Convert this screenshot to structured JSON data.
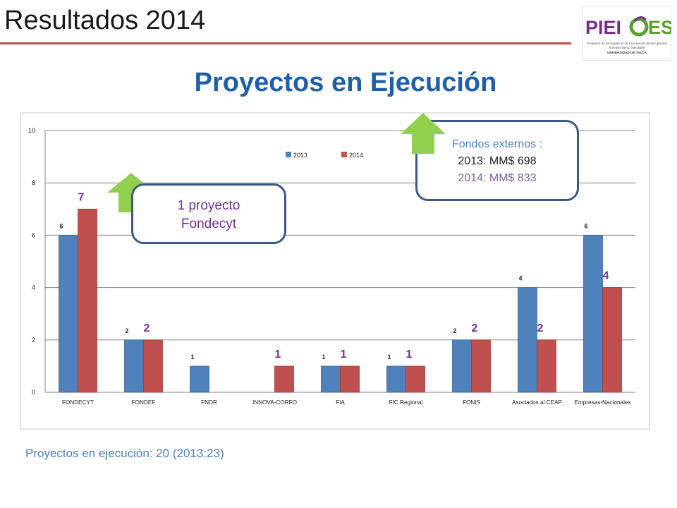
{
  "slide": {
    "title": "Resultados 2014",
    "heading": "Proyectos en Ejecución",
    "footer": "Proyectos en ejecución: 20  (2013:23)"
  },
  "logo": {
    "brand": "PIEI ES",
    "line1": "Programa de Investigación de Excelencia Interdisciplinaria",
    "line2": "Envejecimiento Saludable",
    "line3": "UNIVERSIDAD DE TALCA",
    "colors": {
      "purple": "#7b2c8f",
      "green": "#5aa02c"
    }
  },
  "callouts": {
    "fondecyt": {
      "line1": "1 proyecto",
      "line2": "Fondecyt"
    },
    "fondos": {
      "line1": "Fondos externos :",
      "line2": "2013: MM$ 698",
      "line3": "2014: MM$ 833"
    }
  },
  "colors": {
    "series2013": "#4f81bd",
    "series2014": "#c0504d",
    "label2014": "#7030a0",
    "arrow": "#92d050",
    "titleRule": "#c0504d"
  },
  "chart_data": {
    "type": "bar",
    "categories": [
      "FONDECYT",
      "FONDEF",
      "FNDR",
      "INNOVA-CORFO",
      "FIA",
      "FIC Regional",
      "FONIS",
      "Asociados al CEAP",
      "Empresas-Nacionales"
    ],
    "series": [
      {
        "name": "2013",
        "values": [
          6,
          2,
          1,
          0,
          1,
          1,
          2,
          4,
          6
        ],
        "labels": [
          "6",
          "2",
          "1",
          "",
          "1",
          "1",
          "2",
          "4",
          "6"
        ]
      },
      {
        "name": "2014",
        "values": [
          7,
          2,
          0,
          1,
          1,
          1,
          2,
          2,
          4
        ],
        "labels": [
          "7",
          "2",
          "",
          "1",
          "1",
          "1",
          "2",
          "2",
          "4"
        ]
      }
    ],
    "ylim": [
      0,
      10
    ],
    "yticks": [
      "0",
      "2",
      "4",
      "6",
      "8",
      "10"
    ],
    "grid": true,
    "legend": "top-center"
  }
}
